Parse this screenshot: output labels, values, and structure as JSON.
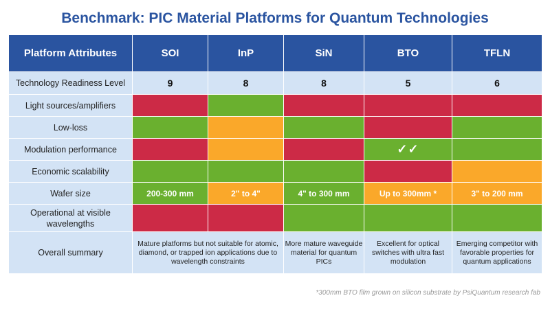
{
  "title": "Benchmark: PIC Material Platforms for Quantum Technologies",
  "header": {
    "attributes_label": "Platform Attributes",
    "platforms": [
      "SOI",
      "InP",
      "SiN",
      "BTO",
      "TFLN"
    ]
  },
  "rows": {
    "trl": {
      "label": "Technology Readiness Level",
      "values": [
        "9",
        "8",
        "8",
        "5",
        "6"
      ]
    },
    "light_sources": {
      "label": "Light sources/amplifiers",
      "ratings": [
        "poor",
        "good",
        "poor",
        "poor",
        "poor"
      ]
    },
    "low_loss": {
      "label": "Low-loss",
      "ratings": [
        "good",
        "moderate",
        "good",
        "poor",
        "good"
      ]
    },
    "modulation": {
      "label": "Modulation performance",
      "ratings": [
        "poor",
        "moderate",
        "poor",
        "excellent",
        "good"
      ],
      "bto_mark": "✓✓"
    },
    "scalability": {
      "label": "Economic scalability",
      "ratings": [
        "good",
        "good",
        "good",
        "poor",
        "moderate"
      ]
    },
    "wafer_size": {
      "label": "Wafer size",
      "values": [
        "200-300 mm",
        "2\" to 4\"",
        "4\" to 300 mm",
        "Up to 300mm *",
        "3\" to 200 mm"
      ],
      "ratings": [
        "good",
        "moderate",
        "good",
        "moderate",
        "moderate"
      ]
    },
    "visible": {
      "label": "Operational at visible wavelengths",
      "ratings": [
        "poor",
        "poor",
        "good",
        "good",
        "good"
      ]
    },
    "summary": {
      "label": "Overall summary",
      "soi_inp": "Mature platforms but not suitable for atomic, diamond, or trapped ion applications due to wavelength constraints",
      "sin": "More mature waveguide material for quantum PICs",
      "bto": "Excellent for optical switches with ultra fast modulation",
      "tfln": "Emerging competitor with favorable properties for quantum applications"
    }
  },
  "colors": {
    "poor": "#cc2a46",
    "good": "#6ab02f",
    "moderate": "#faa82a",
    "header": "#2a54a0",
    "label_bg": "#d3e3f5"
  },
  "footnote": "*300mm BTO film grown on silicon substrate by PsiQuantum research fab"
}
